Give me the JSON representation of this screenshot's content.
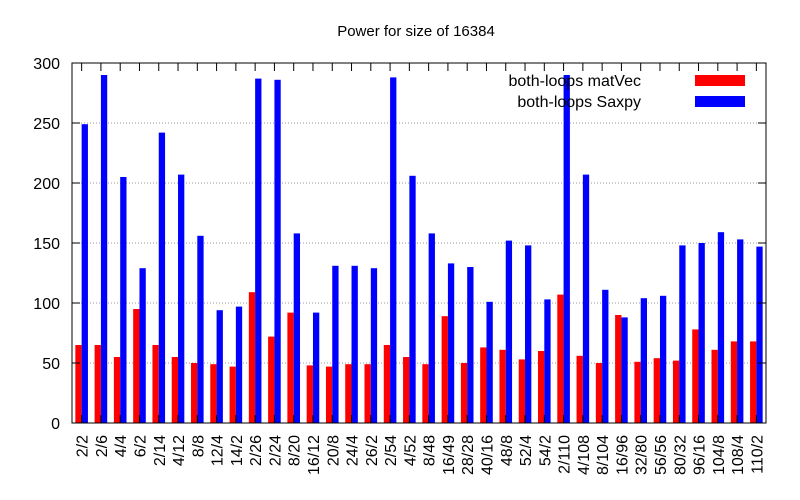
{
  "chart_data": {
    "type": "bar",
    "title": "Power for size of 16384",
    "xlabel": "",
    "ylabel": "",
    "ylim": [
      0,
      300
    ],
    "yticks": [
      0,
      50,
      100,
      150,
      200,
      250,
      300
    ],
    "grid": "horizontal dotted",
    "legend_position": "top-right",
    "categories": [
      "2/2",
      "2/6",
      "4/4",
      "6/2",
      "2/14",
      "4/12",
      "8/8",
      "12/4",
      "14/2",
      "2/26",
      "2/24",
      "8/20",
      "16/12",
      "20/8",
      "24/4",
      "26/2",
      "2/54",
      "4/52",
      "8/48",
      "16/49",
      "28/28",
      "40/16",
      "48/8",
      "52/4",
      "54/2",
      "2/110",
      "4/108",
      "8/104",
      "16/96",
      "32/80",
      "56/56",
      "80/32",
      "96/16",
      "104/8",
      "108/4",
      "110/2"
    ],
    "series": [
      {
        "name": "both-loops matVec",
        "color": "#ff0000",
        "values": [
          65,
          65,
          55,
          95,
          65,
          55,
          50,
          49,
          47,
          109,
          72,
          92,
          48,
          47,
          49,
          49,
          65,
          55,
          49,
          89,
          50,
          63,
          61,
          53,
          60,
          107,
          56,
          50,
          90,
          51,
          54,
          52,
          78,
          61,
          68,
          68
        ]
      },
      {
        "name": "both-loops Saxpy",
        "color": "#0000ff",
        "values": [
          249,
          290,
          205,
          129,
          242,
          207,
          156,
          94,
          97,
          287,
          286,
          158,
          92,
          131,
          131,
          129,
          288,
          206,
          158,
          133,
          130,
          101,
          152,
          148,
          103,
          290,
          207,
          111,
          88,
          104,
          106,
          148,
          150,
          159,
          153,
          147
        ]
      }
    ]
  }
}
